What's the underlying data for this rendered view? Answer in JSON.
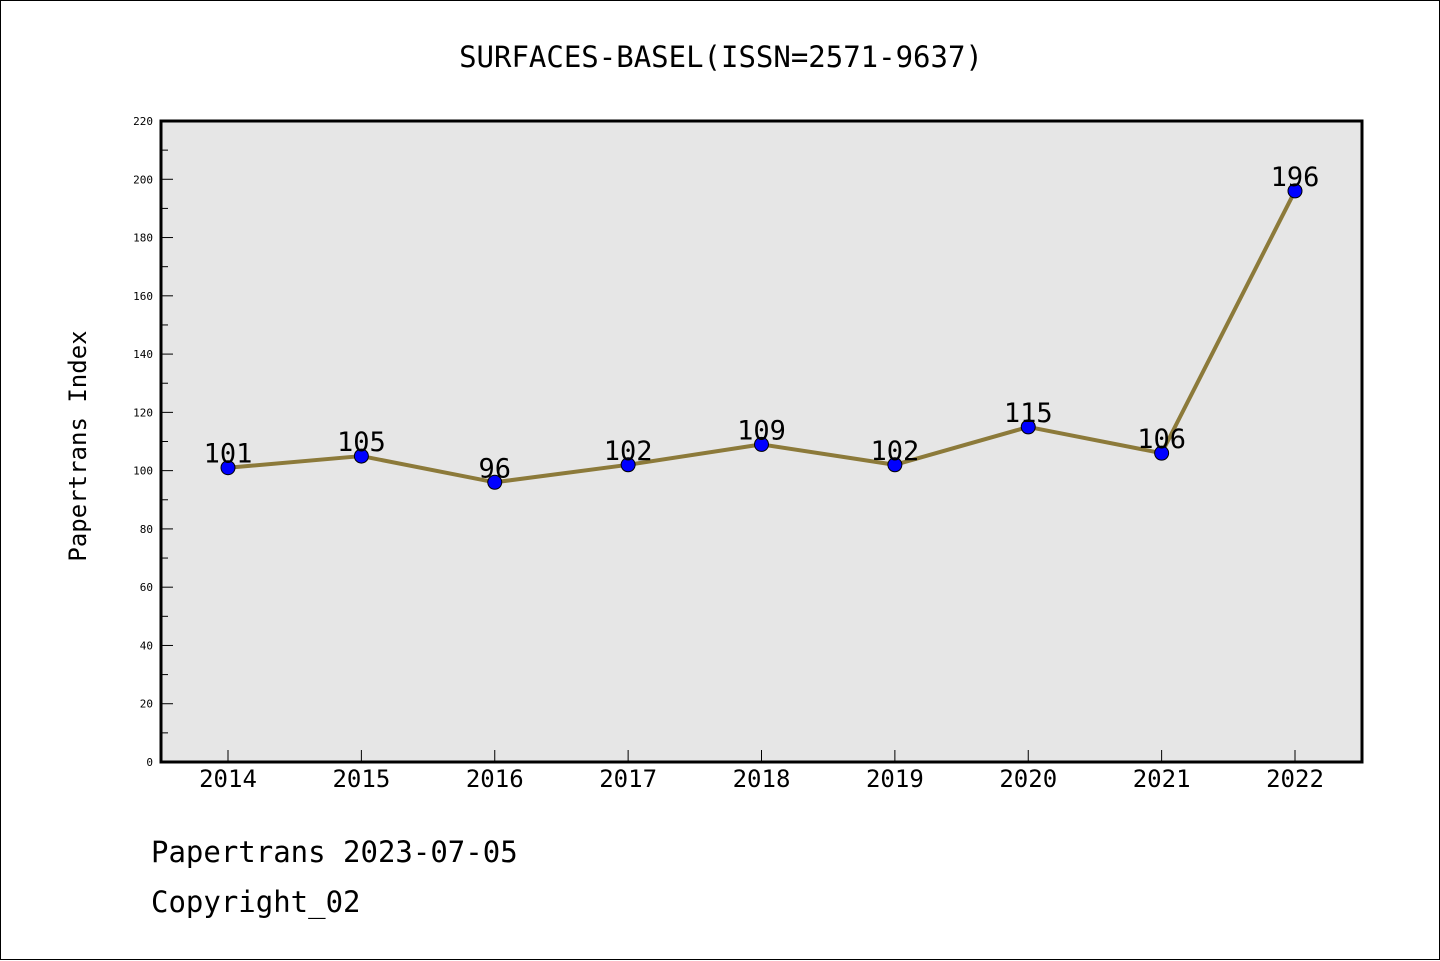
{
  "chart_data": {
    "type": "line",
    "title": "SURFACES-BASEL(ISSN=2571-9637)",
    "xlabel": "",
    "ylabel": "Papertrans Index",
    "categories": [
      "2014",
      "2015",
      "2016",
      "2017",
      "2018",
      "2019",
      "2020",
      "2021",
      "2022"
    ],
    "series": [
      {
        "values": [
          101,
          105,
          96,
          102,
          109,
          102,
          115,
          106,
          196
        ]
      }
    ],
    "ylim": [
      0,
      220
    ],
    "yticks": [
      0,
      20,
      40,
      60,
      80,
      100,
      120,
      140,
      160,
      180,
      200,
      220
    ],
    "grid": false,
    "line_color": "#8c7a3a",
    "marker_color": "#0000ff",
    "plot_background": "#e6e6e6"
  },
  "footer": {
    "line1": "Papertrans 2023-07-05",
    "line2": "Copyright_02"
  }
}
